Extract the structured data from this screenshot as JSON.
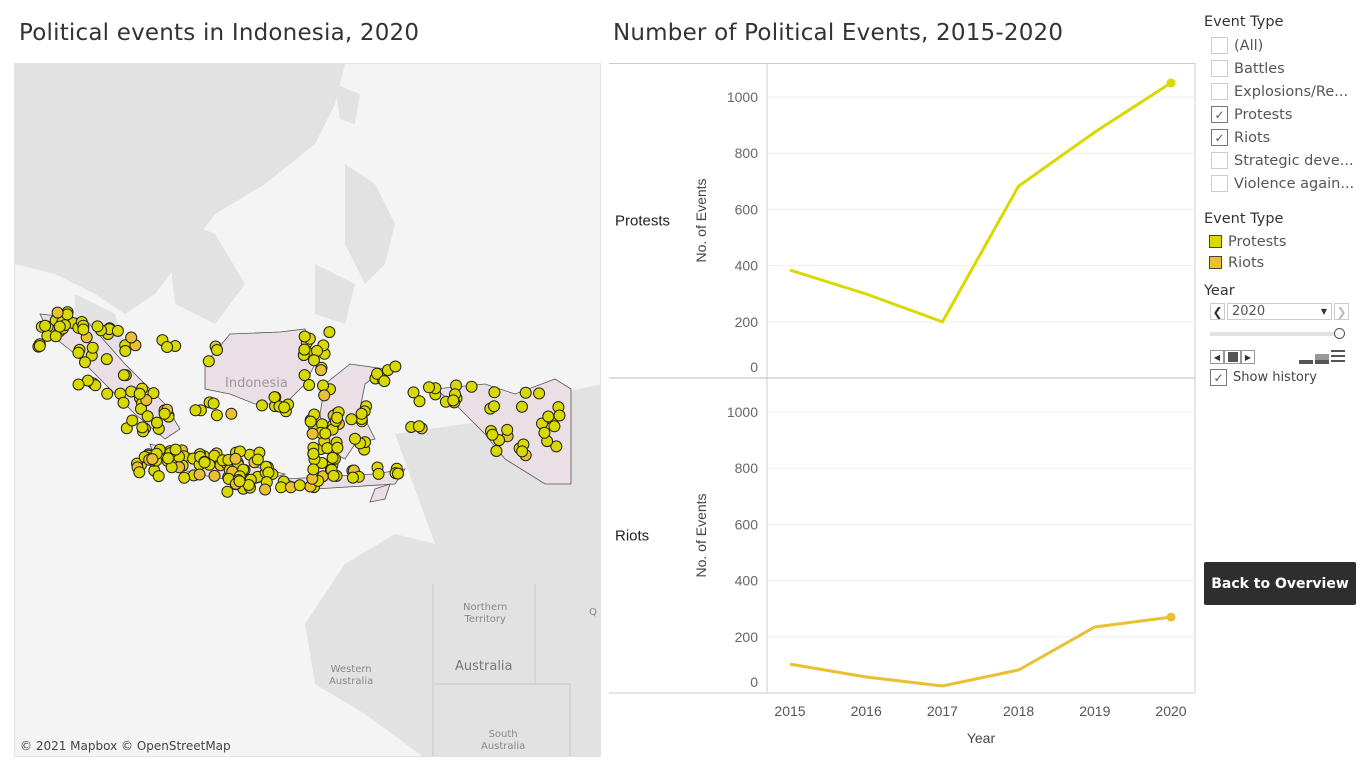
{
  "map": {
    "title": "Political events in Indonesia, 2020",
    "labels": {
      "indonesia": "Indonesia",
      "northern_territory": "Northern\nTerritory",
      "australia": "Australia",
      "western_australia": "Western\nAustralia",
      "south_australia": "South\nAustralia",
      "queensland": "Q"
    },
    "credit": "© 2021 Mapbox © OpenStreetMap"
  },
  "chart_data": {
    "type": "line",
    "title": "Number of Political Events, 2015-2020",
    "xlabel": "Year",
    "ylabel": "No. of Events",
    "categories": [
      "2015",
      "2016",
      "2017",
      "2018",
      "2019",
      "2020"
    ],
    "ylim": [
      0,
      1100
    ],
    "yticks": [
      "0",
      "200",
      "400",
      "600",
      "800",
      "1000"
    ],
    "grid": true,
    "series": [
      {
        "name": "Protests",
        "color": "#d9d900",
        "values": [
          384,
          299,
          200,
          683,
          875,
          1050
        ]
      },
      {
        "name": "Riots",
        "color": "#e8c032",
        "values": [
          103,
          57,
          25,
          82,
          235,
          270
        ]
      }
    ]
  },
  "sidebar": {
    "filter_title": "Event Type",
    "filters": [
      {
        "label": "(All)",
        "checked": false
      },
      {
        "label": "Battles",
        "checked": false
      },
      {
        "label": "Explosions/Re...",
        "checked": false
      },
      {
        "label": "Protests",
        "checked": true
      },
      {
        "label": "Riots",
        "checked": true
      },
      {
        "label": "Strategic deve...",
        "checked": false
      },
      {
        "label": "Violence again...",
        "checked": false
      }
    ],
    "legend_title": "Event Type",
    "legend": [
      {
        "label": "Protests",
        "color": "#d9d900"
      },
      {
        "label": "Riots",
        "color": "#e8c032"
      }
    ],
    "year_title": "Year",
    "year_value": "2020",
    "slider_position": 1.0,
    "show_history_label": "Show history",
    "show_history_checked": true,
    "back_button": "Back to Overview"
  }
}
